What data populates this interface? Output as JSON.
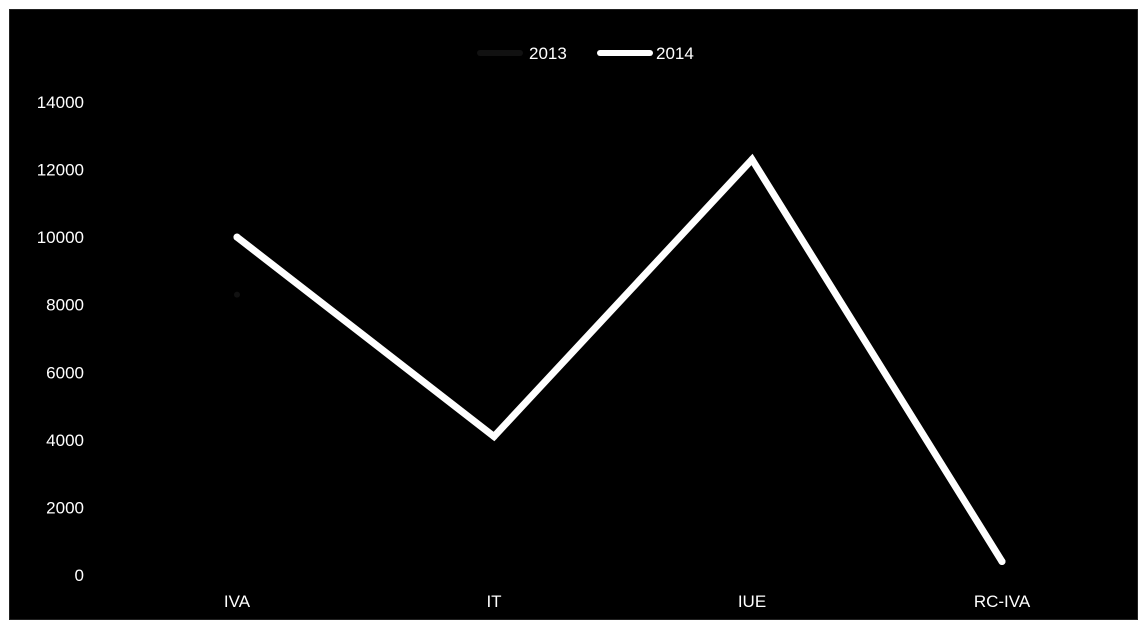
{
  "chart_data": {
    "type": "line",
    "categories": [
      "IVA",
      "IT",
      "IUE",
      "RC-IVA"
    ],
    "series": [
      {
        "name": "2013",
        "values": [
          8300,
          null,
          null,
          null
        ],
        "color": "#111111"
      },
      {
        "name": "2014",
        "values": [
          10000,
          4100,
          12300,
          400
        ],
        "color": "#ffffff"
      }
    ],
    "y_ticks": [
      "0",
      "2000",
      "4000",
      "6000",
      "8000",
      "10000",
      "12000",
      "14000"
    ],
    "ylim": [
      0,
      14000
    ],
    "grid": false,
    "legend": "top-center",
    "background": "#000000",
    "text_color": "#ffffff"
  }
}
